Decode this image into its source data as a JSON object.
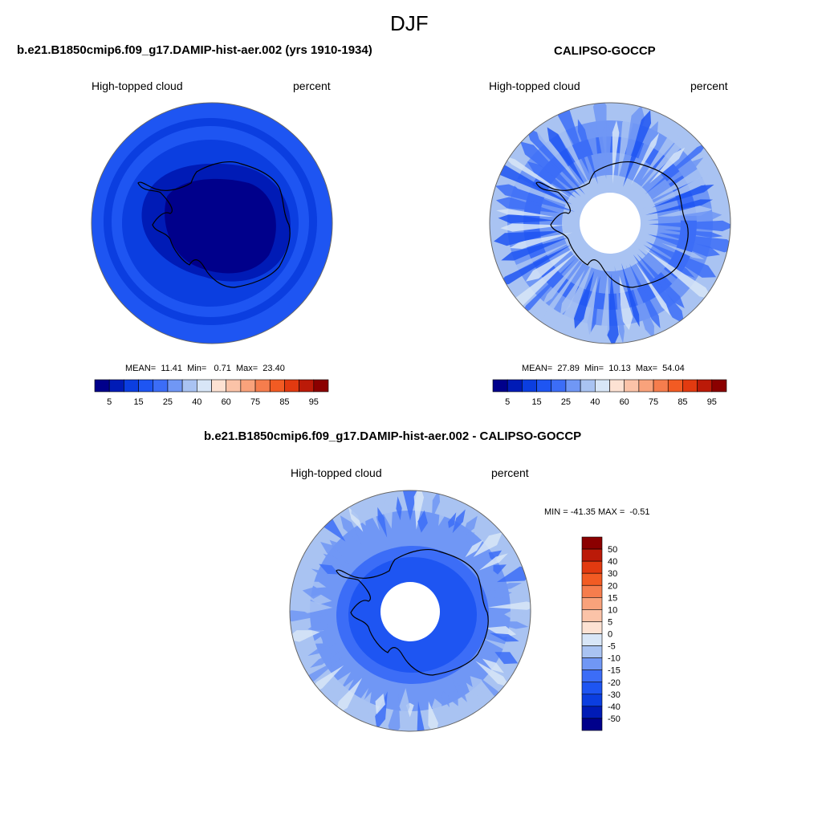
{
  "figure": {
    "title": "DJF",
    "bottom_title": "b.e21.B1850cmip6.f09_g17.DAMIP-hist-aer.002 - CALIPSO-GOCCP"
  },
  "colors": {
    "seq": [
      "#00008b",
      "#001bb6",
      "#0b3ee0",
      "#1e55f2",
      "#3c6df7",
      "#7097f5",
      "#a9c3f2",
      "#d8e6f7",
      "#fde2d3",
      "#fbc3a8",
      "#f9a27b",
      "#f67d4d",
      "#f25b23",
      "#e23a10",
      "#bb1a08",
      "#8b0000"
    ],
    "land_outline": "#000000",
    "disk_edge": "#666666"
  },
  "chart_data": [
    {
      "type": "heatmap",
      "projection": "south-polar-stereographic",
      "title": "b.e21.B1850cmip6.f09_g17.DAMIP-hist-aer.002 (yrs 1910-1934)",
      "left_label": "High-topped cloud",
      "right_label": "percent",
      "stats_text": "MEAN=  11.41  Min=   0.71  Max=  23.40",
      "mean": 11.41,
      "min": 0.71,
      "max": 23.4,
      "colorbar_ticks": [
        "5",
        "15",
        "25",
        "40",
        "60",
        "75",
        "85",
        "95"
      ],
      "polar_hole": false
    },
    {
      "type": "heatmap",
      "projection": "south-polar-stereographic",
      "title": "CALIPSO-GOCCP",
      "left_label": "High-topped cloud",
      "right_label": "percent",
      "stats_text": "MEAN=  27.89  Min=  10.13  Max=  54.04",
      "mean": 27.89,
      "min": 10.13,
      "max": 54.04,
      "colorbar_ticks": [
        "5",
        "15",
        "25",
        "40",
        "60",
        "75",
        "85",
        "95"
      ],
      "polar_hole": true
    },
    {
      "type": "heatmap",
      "projection": "south-polar-stereographic",
      "title": "b.e21.B1850cmip6.f09_g17.DAMIP-hist-aer.002 - CALIPSO-GOCCP",
      "left_label": "High-topped cloud",
      "right_label": "percent",
      "stats_text": "MIN = -41.35 MAX =  -0.51",
      "min": -41.35,
      "max": -0.51,
      "colorbar_ticks": [
        "50",
        "40",
        "30",
        "20",
        "15",
        "10",
        "5",
        "0",
        "-5",
        "-10",
        "-15",
        "-20",
        "-30",
        "-40",
        "-50"
      ],
      "polar_hole": true
    }
  ]
}
